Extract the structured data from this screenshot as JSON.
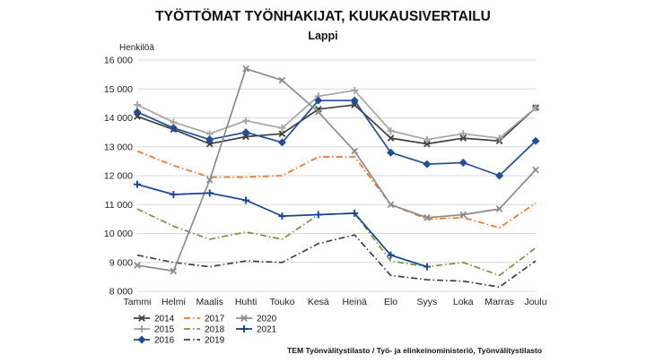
{
  "chart_data": {
    "type": "line",
    "title": "TYÖTTÖMAT TYÖNHAKIJAT, KUUKAUSIVERTAILU",
    "subtitle": "Lappi",
    "ylabel": "Henkilöä",
    "xlabel": "",
    "source": "TEM Työnvälitystilasto / Työ- ja elinkeinoministeriö, Työnvälitystilasto",
    "categories": [
      "Tammi",
      "Helmi",
      "Maalis",
      "Huhti",
      "Touko",
      "Kesä",
      "Heinä",
      "Elo",
      "Syys",
      "Loka",
      "Marras",
      "Joulu"
    ],
    "ylim": [
      8000,
      16000
    ],
    "yticks": [
      8000,
      9000,
      10000,
      11000,
      12000,
      13000,
      14000,
      15000,
      16000
    ],
    "ytick_labels": [
      "8 000",
      "9 000",
      "10 000",
      "11 000",
      "12 000",
      "13 000",
      "14 000",
      "15 000",
      "16 000"
    ],
    "grid": "horizontal",
    "legend_position": "bottom-left",
    "series": [
      {
        "name": "2014",
        "color": "#404040",
        "dash": "solid",
        "marker": "x",
        "values": [
          14050,
          13600,
          13100,
          13350,
          13450,
          14300,
          14450,
          13300,
          13100,
          13300,
          13200,
          14350
        ]
      },
      {
        "name": "2015",
        "color": "#a6a6a6",
        "dash": "solid",
        "marker": "plus",
        "values": [
          14450,
          13850,
          13450,
          13900,
          13650,
          14750,
          14950,
          13550,
          13250,
          13450,
          13300,
          14350
        ]
      },
      {
        "name": "2016",
        "color": "#1f4e9a",
        "dash": "solid",
        "marker": "diamond",
        "values": [
          14200,
          13650,
          13250,
          13500,
          13150,
          14600,
          14600,
          12800,
          12400,
          12450,
          12000,
          13200
        ]
      },
      {
        "name": "2017",
        "color": "#f07421",
        "dash": "dashdot",
        "marker": "none",
        "values": [
          12850,
          12350,
          11950,
          11950,
          12000,
          12650,
          12650,
          11000,
          10500,
          10550,
          10200,
          11050
        ]
      },
      {
        "name": "2018",
        "color": "#70943b",
        "dash": "dashdot",
        "marker": "none",
        "values": [
          10850,
          10250,
          9800,
          10050,
          9800,
          10650,
          10700,
          9050,
          8850,
          9000,
          8550,
          9500
        ]
      },
      {
        "name": "2019",
        "color": "#404040",
        "dash": "dashdot",
        "marker": "none",
        "values": [
          9250,
          9000,
          8850,
          9050,
          9000,
          9650,
          9950,
          8550,
          8400,
          8350,
          8150,
          9050
        ]
      },
      {
        "name": "2020",
        "color": "#8c8c8c",
        "dash": "solid",
        "marker": "x",
        "values": [
          8900,
          8700,
          11850,
          15700,
          15300,
          14200,
          12850,
          11000,
          10550,
          10650,
          10850,
          12200
        ]
      },
      {
        "name": "2021",
        "color": "#12449a",
        "dash": "solid",
        "marker": "plus",
        "values": [
          11700,
          11350,
          11400,
          11150,
          10600,
          10650,
          10700,
          9250,
          8850,
          null,
          null,
          null
        ]
      }
    ]
  }
}
